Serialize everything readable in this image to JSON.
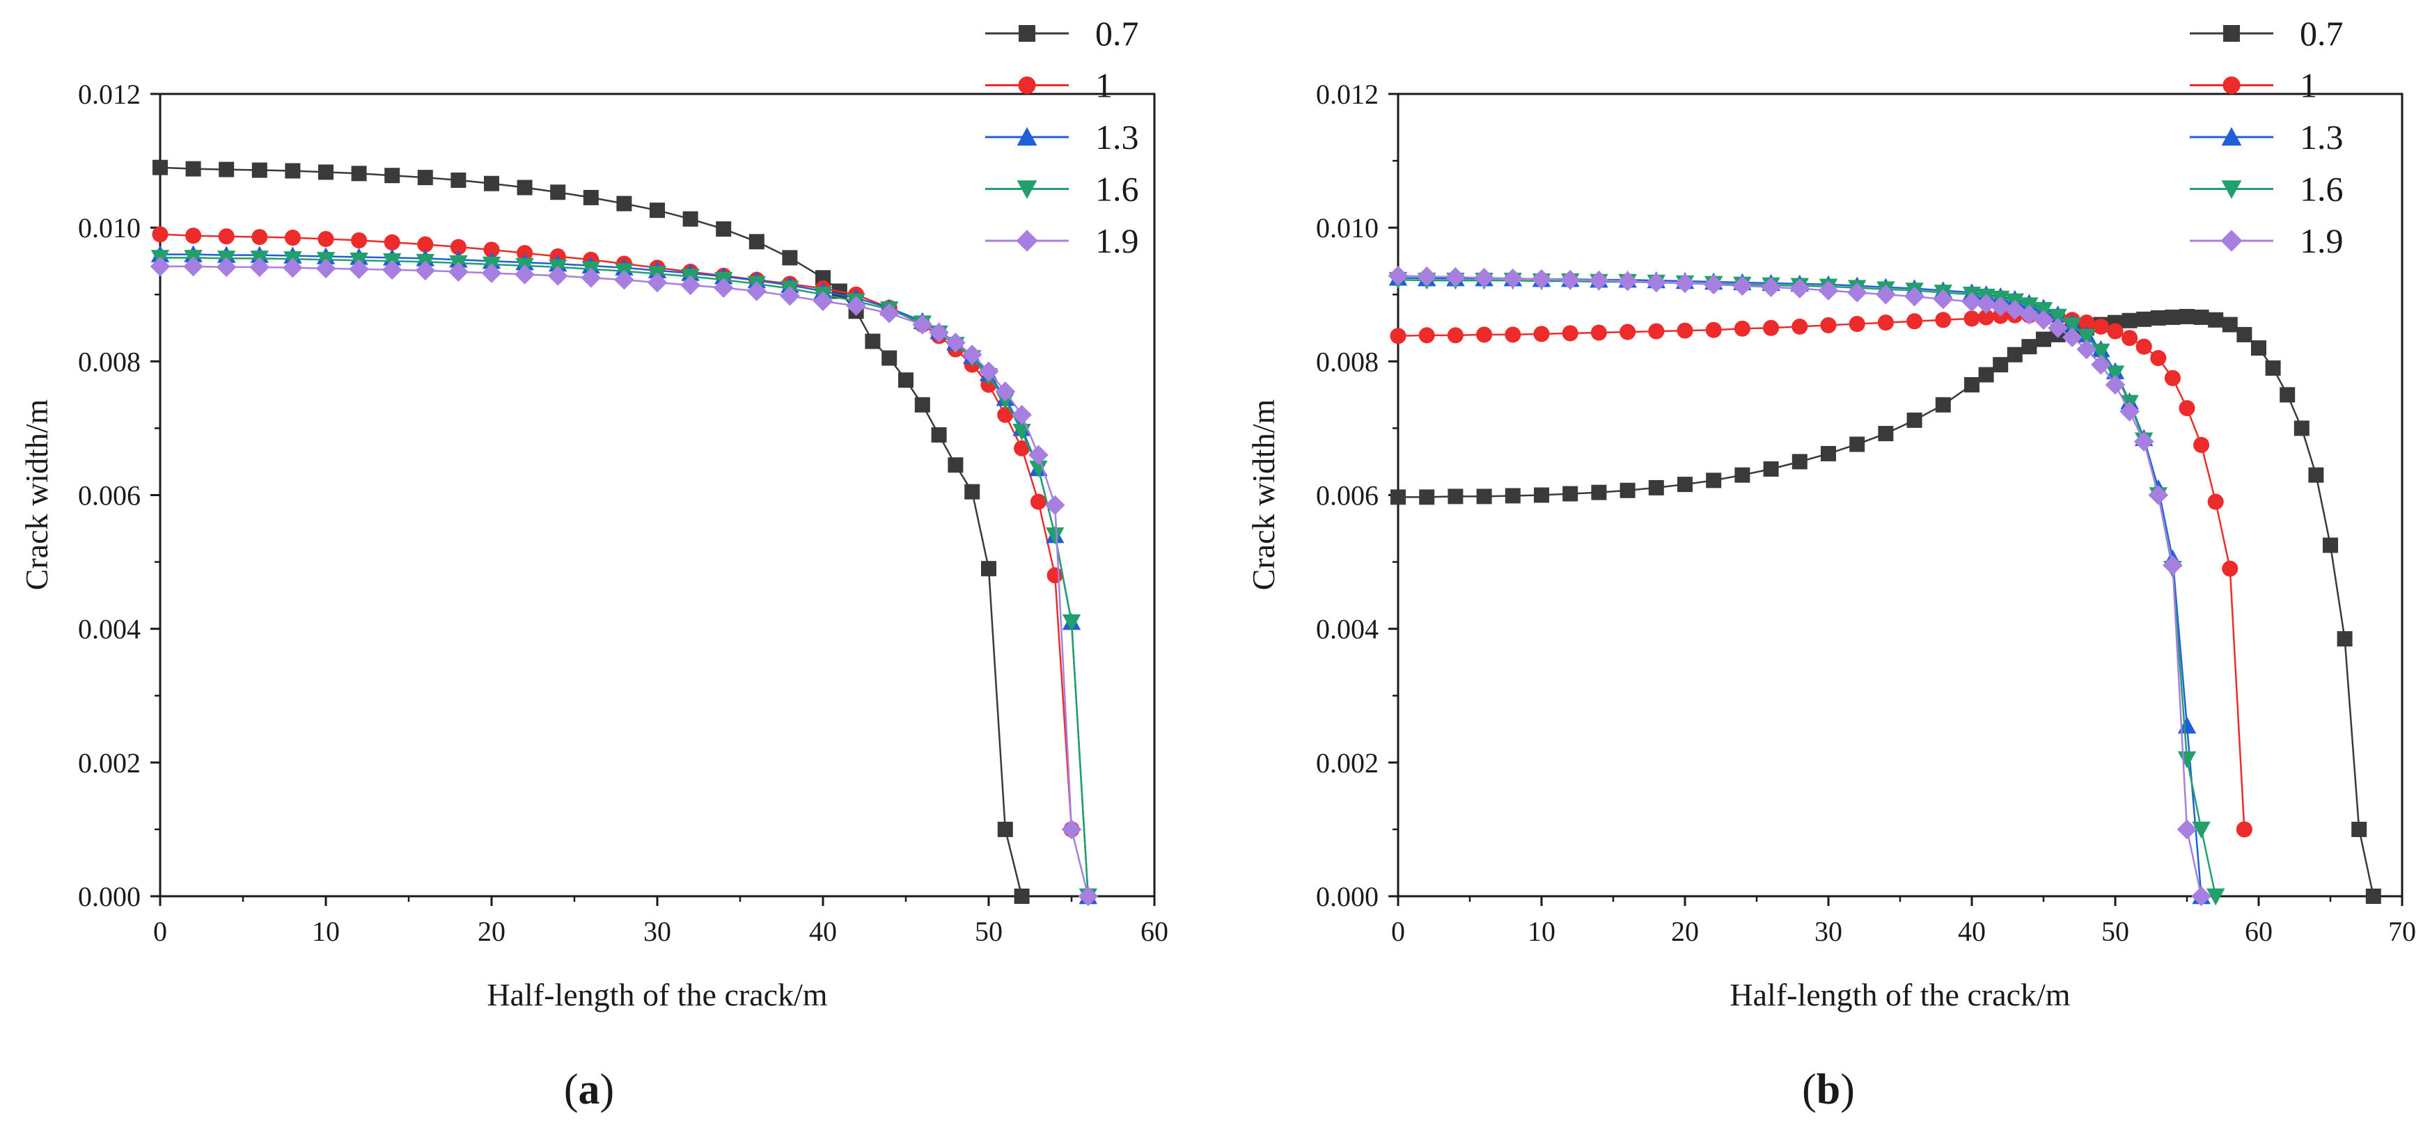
{
  "chart_data": [
    {
      "type": "line",
      "panel_label": "a",
      "xlabel": "Half-length of the crack/m",
      "ylabel": "Crack width/m",
      "xlim": [
        0,
        60
      ],
      "ylim": [
        0,
        0.012
      ],
      "xticks": [
        0,
        10,
        20,
        30,
        40,
        50,
        60
      ],
      "yticks": [
        0.0,
        0.002,
        0.004,
        0.006,
        0.008,
        0.01,
        0.012
      ],
      "ytick_labels": [
        "0.000",
        "0.002",
        "0.004",
        "0.006",
        "0.008",
        "0.010",
        "0.012"
      ],
      "xtick_labels": [
        "0",
        "10",
        "20",
        "30",
        "40",
        "50",
        "60"
      ],
      "legend_position": "top-right",
      "series": [
        {
          "name": "0.7",
          "color": "#3a3a3a",
          "marker": "square",
          "x": [
            0,
            2,
            4,
            6,
            8,
            10,
            12,
            14,
            16,
            18,
            20,
            22,
            24,
            26,
            28,
            30,
            32,
            34,
            36,
            38,
            40,
            41,
            42,
            43,
            44,
            45,
            46,
            47,
            48,
            49,
            50,
            51,
            52
          ],
          "y": [
            0.0109,
            0.01088,
            0.01087,
            0.01086,
            0.01085,
            0.01083,
            0.01081,
            0.01078,
            0.01075,
            0.01071,
            0.01066,
            0.0106,
            0.01053,
            0.01045,
            0.01036,
            0.01026,
            0.01013,
            0.00998,
            0.00979,
            0.00955,
            0.00925,
            0.00905,
            0.00875,
            0.0083,
            0.00805,
            0.00772,
            0.00735,
            0.0069,
            0.00645,
            0.00605,
            0.0049,
            0.001,
            0.0
          ]
        },
        {
          "name": "1",
          "color": "#ee2b2b",
          "marker": "circle",
          "x": [
            0,
            2,
            4,
            6,
            8,
            10,
            12,
            14,
            16,
            18,
            20,
            22,
            24,
            26,
            28,
            30,
            32,
            34,
            36,
            38,
            40,
            42,
            44,
            46,
            47,
            48,
            49,
            50,
            51,
            52,
            53,
            54,
            55
          ],
          "y": [
            0.0099,
            0.00988,
            0.00987,
            0.00986,
            0.00985,
            0.00983,
            0.00981,
            0.00978,
            0.00975,
            0.00971,
            0.00967,
            0.00962,
            0.00957,
            0.00952,
            0.00946,
            0.0094,
            0.00934,
            0.00928,
            0.00922,
            0.00916,
            0.00909,
            0.009,
            0.0088,
            0.00855,
            0.00838,
            0.00818,
            0.00795,
            0.00765,
            0.0072,
            0.0067,
            0.0059,
            0.0048,
            0.001
          ]
        },
        {
          "name": "1.3",
          "color": "#1f5fd8",
          "marker": "triangle-up",
          "x": [
            0,
            2,
            4,
            6,
            8,
            10,
            12,
            14,
            16,
            18,
            20,
            22,
            24,
            26,
            28,
            30,
            32,
            34,
            36,
            38,
            40,
            42,
            44,
            46,
            47,
            48,
            49,
            50,
            51,
            52,
            53,
            54,
            55,
            56
          ],
          "y": [
            0.0096,
            0.0096,
            0.00959,
            0.00959,
            0.00958,
            0.00957,
            0.00956,
            0.00955,
            0.00954,
            0.00952,
            0.0095,
            0.00948,
            0.00946,
            0.00943,
            0.0094,
            0.00936,
            0.00932,
            0.00927,
            0.00921,
            0.00914,
            0.00905,
            0.00895,
            0.0088,
            0.0086,
            0.00845,
            0.00828,
            0.00808,
            0.00782,
            0.00745,
            0.007,
            0.0064,
            0.0054,
            0.0041,
            0.0
          ]
        },
        {
          "name": "1.6",
          "color": "#22a06b",
          "marker": "triangle-down",
          "x": [
            0,
            2,
            4,
            6,
            8,
            10,
            12,
            14,
            16,
            18,
            20,
            22,
            24,
            26,
            28,
            30,
            32,
            34,
            36,
            38,
            40,
            42,
            44,
            46,
            47,
            48,
            49,
            50,
            51,
            52,
            53,
            54,
            55,
            56
          ],
          "y": [
            0.00955,
            0.00955,
            0.00954,
            0.00954,
            0.00953,
            0.00952,
            0.00951,
            0.0095,
            0.00949,
            0.00947,
            0.00945,
            0.00943,
            0.00941,
            0.00938,
            0.00935,
            0.00931,
            0.00927,
            0.00922,
            0.00916,
            0.00909,
            0.009,
            0.0089,
            0.00878,
            0.00857,
            0.00842,
            0.00825,
            0.00805,
            0.00778,
            0.00742,
            0.00695,
            0.0064,
            0.0054,
            0.0041,
            0.0
          ]
        },
        {
          "name": "1.9",
          "color": "#a77fe0",
          "marker": "diamond",
          "x": [
            0,
            2,
            4,
            6,
            8,
            10,
            12,
            14,
            16,
            18,
            20,
            22,
            24,
            26,
            28,
            30,
            32,
            34,
            36,
            38,
            40,
            42,
            44,
            46,
            47,
            48,
            49,
            50,
            51,
            52,
            53,
            54,
            55,
            56
          ],
          "y": [
            0.00942,
            0.00942,
            0.00941,
            0.00941,
            0.0094,
            0.00939,
            0.00938,
            0.00937,
            0.00936,
            0.00934,
            0.00932,
            0.0093,
            0.00928,
            0.00925,
            0.00922,
            0.00918,
            0.00914,
            0.0091,
            0.00905,
            0.00898,
            0.0089,
            0.00883,
            0.00872,
            0.00855,
            0.00843,
            0.00828,
            0.0081,
            0.00785,
            0.00755,
            0.0072,
            0.0066,
            0.00585,
            0.001,
            0.0
          ]
        }
      ]
    },
    {
      "type": "line",
      "panel_label": "b",
      "xlabel": "Half-length of the crack/m",
      "ylabel": "Crack width/m",
      "xlim": [
        0,
        70
      ],
      "ylim": [
        0,
        0.012
      ],
      "xticks": [
        0,
        10,
        20,
        30,
        40,
        50,
        60,
        70
      ],
      "yticks": [
        0.0,
        0.002,
        0.004,
        0.006,
        0.008,
        0.01,
        0.012
      ],
      "ytick_labels": [
        "0.000",
        "0.002",
        "0.004",
        "0.006",
        "0.008",
        "0.010",
        "0.012"
      ],
      "xtick_labels": [
        "0",
        "10",
        "20",
        "30",
        "40",
        "50",
        "60",
        "70"
      ],
      "legend_position": "top-right",
      "series": [
        {
          "name": "0.7",
          "color": "#3a3a3a",
          "marker": "square",
          "x": [
            0,
            2,
            4,
            6,
            8,
            10,
            12,
            14,
            16,
            18,
            20,
            22,
            24,
            26,
            28,
            30,
            32,
            34,
            36,
            38,
            40,
            41,
            42,
            43,
            44,
            45,
            46,
            47,
            48,
            49,
            50,
            51,
            52,
            53,
            54,
            55,
            56,
            57,
            58,
            59,
            60,
            61,
            62,
            63,
            64,
            65,
            66,
            67,
            68
          ],
          "y": [
            0.00597,
            0.00597,
            0.00598,
            0.00598,
            0.00599,
            0.006,
            0.00602,
            0.00604,
            0.00607,
            0.00611,
            0.00616,
            0.00622,
            0.0063,
            0.00639,
            0.0065,
            0.00662,
            0.00676,
            0.00692,
            0.00712,
            0.00735,
            0.00765,
            0.0078,
            0.00795,
            0.0081,
            0.00822,
            0.00833,
            0.0084,
            0.00845,
            0.0085,
            0.00855,
            0.00858,
            0.00861,
            0.00863,
            0.00865,
            0.00866,
            0.00867,
            0.00866,
            0.00862,
            0.00855,
            0.0084,
            0.0082,
            0.0079,
            0.0075,
            0.007,
            0.0063,
            0.00525,
            0.00385,
            0.001,
            0.0
          ]
        },
        {
          "name": "1",
          "color": "#ee2b2b",
          "marker": "circle",
          "x": [
            0,
            2,
            4,
            6,
            8,
            10,
            12,
            14,
            16,
            18,
            20,
            22,
            24,
            26,
            28,
            30,
            32,
            34,
            36,
            38,
            40,
            41,
            42,
            43,
            44,
            45,
            46,
            47,
            48,
            49,
            50,
            51,
            52,
            53,
            54,
            55,
            56,
            57,
            58,
            59
          ],
          "y": [
            0.00838,
            0.00839,
            0.00839,
            0.0084,
            0.0084,
            0.00841,
            0.00842,
            0.00843,
            0.00844,
            0.00845,
            0.00846,
            0.00847,
            0.00849,
            0.0085,
            0.00852,
            0.00854,
            0.00856,
            0.00858,
            0.0086,
            0.00862,
            0.00864,
            0.00866,
            0.00868,
            0.00869,
            0.00869,
            0.00868,
            0.00866,
            0.00862,
            0.00858,
            0.00852,
            0.00845,
            0.00835,
            0.00822,
            0.00805,
            0.00775,
            0.0073,
            0.00675,
            0.0059,
            0.0049,
            0.001
          ]
        },
        {
          "name": "1.3",
          "color": "#1f5fd8",
          "marker": "triangle-up",
          "x": [
            0,
            2,
            4,
            6,
            8,
            10,
            12,
            14,
            16,
            18,
            20,
            22,
            24,
            26,
            28,
            30,
            32,
            34,
            36,
            38,
            40,
            41,
            42,
            43,
            44,
            45,
            46,
            47,
            48,
            49,
            50,
            51,
            52,
            53,
            54,
            55,
            56
          ],
          "y": [
            0.00925,
            0.00924,
            0.00924,
            0.00924,
            0.00924,
            0.00923,
            0.00923,
            0.00922,
            0.00922,
            0.00921,
            0.0092,
            0.00919,
            0.00918,
            0.00917,
            0.00916,
            0.00915,
            0.00913,
            0.00911,
            0.00909,
            0.00906,
            0.00903,
            0.009,
            0.00897,
            0.00893,
            0.00887,
            0.0088,
            0.0087,
            0.00857,
            0.0084,
            0.00818,
            0.00785,
            0.0074,
            0.00685,
            0.0061,
            0.00505,
            0.00255,
            0.0
          ]
        },
        {
          "name": "1.6",
          "color": "#22a06b",
          "marker": "triangle-down",
          "x": [
            0,
            2,
            4,
            6,
            8,
            10,
            12,
            14,
            16,
            18,
            20,
            22,
            24,
            26,
            28,
            30,
            32,
            34,
            36,
            38,
            40,
            41,
            42,
            43,
            44,
            45,
            46,
            47,
            48,
            49,
            50,
            51,
            52,
            53,
            54,
            55,
            56,
            57
          ],
          "y": [
            0.00922,
            0.00921,
            0.00921,
            0.00921,
            0.00921,
            0.0092,
            0.0092,
            0.00919,
            0.00919,
            0.00918,
            0.00917,
            0.00916,
            0.00915,
            0.00914,
            0.00913,
            0.00912,
            0.0091,
            0.00908,
            0.00906,
            0.00903,
            0.009,
            0.00897,
            0.00894,
            0.0089,
            0.00884,
            0.00877,
            0.00867,
            0.00854,
            0.00837,
            0.00815,
            0.00782,
            0.00738,
            0.00682,
            0.006,
            0.0049,
            0.00205,
            0.001,
            0.0
          ]
        },
        {
          "name": "1.9",
          "color": "#a77fe0",
          "marker": "diamond",
          "x": [
            0,
            2,
            4,
            6,
            8,
            10,
            12,
            14,
            16,
            18,
            20,
            22,
            24,
            26,
            28,
            30,
            32,
            34,
            36,
            38,
            40,
            41,
            42,
            43,
            44,
            45,
            46,
            47,
            48,
            49,
            50,
            51,
            52,
            53,
            54,
            55,
            56
          ],
          "y": [
            0.00928,
            0.00927,
            0.00926,
            0.00925,
            0.00924,
            0.00923,
            0.00922,
            0.00921,
            0.0092,
            0.00918,
            0.00917,
            0.00915,
            0.00913,
            0.00911,
            0.00909,
            0.00906,
            0.00903,
            0.009,
            0.00897,
            0.00893,
            0.00889,
            0.00886,
            0.00882,
            0.00877,
            0.0087,
            0.00862,
            0.0085,
            0.00836,
            0.00818,
            0.00795,
            0.00765,
            0.00725,
            0.0068,
            0.006,
            0.00495,
            0.001,
            0.0
          ]
        }
      ]
    }
  ]
}
